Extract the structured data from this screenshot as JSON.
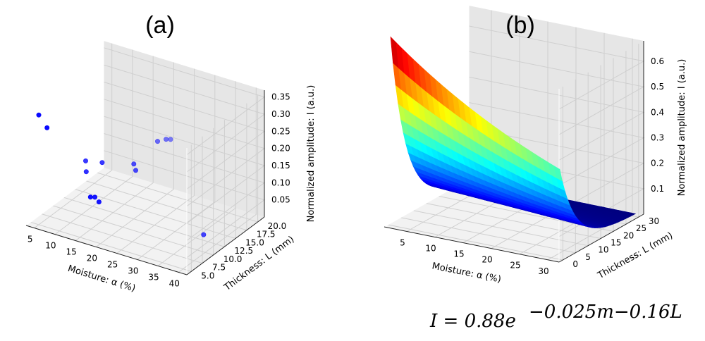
{
  "chart_data": [
    {
      "type": "scatter",
      "panel_label": "(a)",
      "xlabel": "Moisture: α (%)",
      "ylabel": "Thickness: L (mm)",
      "zlabel": "Normalized amplitude: I (a.u.)",
      "xticks": [
        "5",
        "10",
        "15",
        "20",
        "25",
        "30",
        "35",
        "40"
      ],
      "yticks": [
        "5.0",
        "7.5",
        "10.0",
        "12.5",
        "15.0",
        "17.5",
        "20.0"
      ],
      "zticks": [
        "0.05",
        "0.10",
        "0.15",
        "0.20",
        "0.25",
        "0.30",
        "0.35"
      ],
      "xlim": [
        3,
        42
      ],
      "ylim": [
        4,
        21.5
      ],
      "zlim": [
        0.0,
        0.37
      ],
      "marker_color": "#0000ff",
      "points": [
        {
          "moisture": 5,
          "thickness": 5,
          "amplitude": 0.32
        },
        {
          "moisture": 7,
          "thickness": 5,
          "amplitude": 0.29
        },
        {
          "moisture": 11,
          "thickness": 10,
          "amplitude": 0.16
        },
        {
          "moisture": 12,
          "thickness": 9.2,
          "amplitude": 0.14
        },
        {
          "moisture": 15,
          "thickness": 10,
          "amplitude": 0.17
        },
        {
          "moisture": 17,
          "thickness": 5.5,
          "amplitude": 0.12
        },
        {
          "moisture": 17,
          "thickness": 6.5,
          "amplitude": 0.11
        },
        {
          "moisture": 18,
          "thickness": 6.5,
          "amplitude": 0.1
        },
        {
          "moisture": 20,
          "thickness": 12.5,
          "amplitude": 0.16
        },
        {
          "moisture": 21,
          "thickness": 12,
          "amplitude": 0.15
        },
        {
          "moisture": 22,
          "thickness": 16,
          "amplitude": 0.2
        },
        {
          "moisture": 23,
          "thickness": 17,
          "amplitude": 0.2
        },
        {
          "moisture": 23,
          "thickness": 18,
          "amplitude": 0.19
        },
        {
          "moisture": 38,
          "thickness": 11.5,
          "amplitude": 0.03
        }
      ]
    },
    {
      "type": "surface",
      "panel_label": "(b)",
      "xlabel": "Moisture: α (%)",
      "ylabel": "Thickness: L (mm)",
      "zlabel": "Normalized amplitude: I (a.u.)",
      "xticks": [
        "5",
        "10",
        "15",
        "20",
        "25",
        "30"
      ],
      "yticks": [
        "0",
        "5",
        "10",
        "15",
        "20",
        "25",
        "30"
      ],
      "zticks": [
        "0.1",
        "0.2",
        "0.3",
        "0.4",
        "0.5",
        "0.6"
      ],
      "xlim": [
        1,
        32
      ],
      "ylim": [
        -1.5,
        32
      ],
      "zlim": [
        0.0,
        0.68
      ],
      "x_range": [
        1,
        31
      ],
      "y_range": [
        1,
        31
      ],
      "colormap": "jet",
      "model": {
        "a": 0.88,
        "b": 0.025,
        "c": 0.16
      }
    }
  ],
  "equation": {
    "lhs": "I = 0.88e",
    "exponent": "−0.025m−0.16L"
  }
}
